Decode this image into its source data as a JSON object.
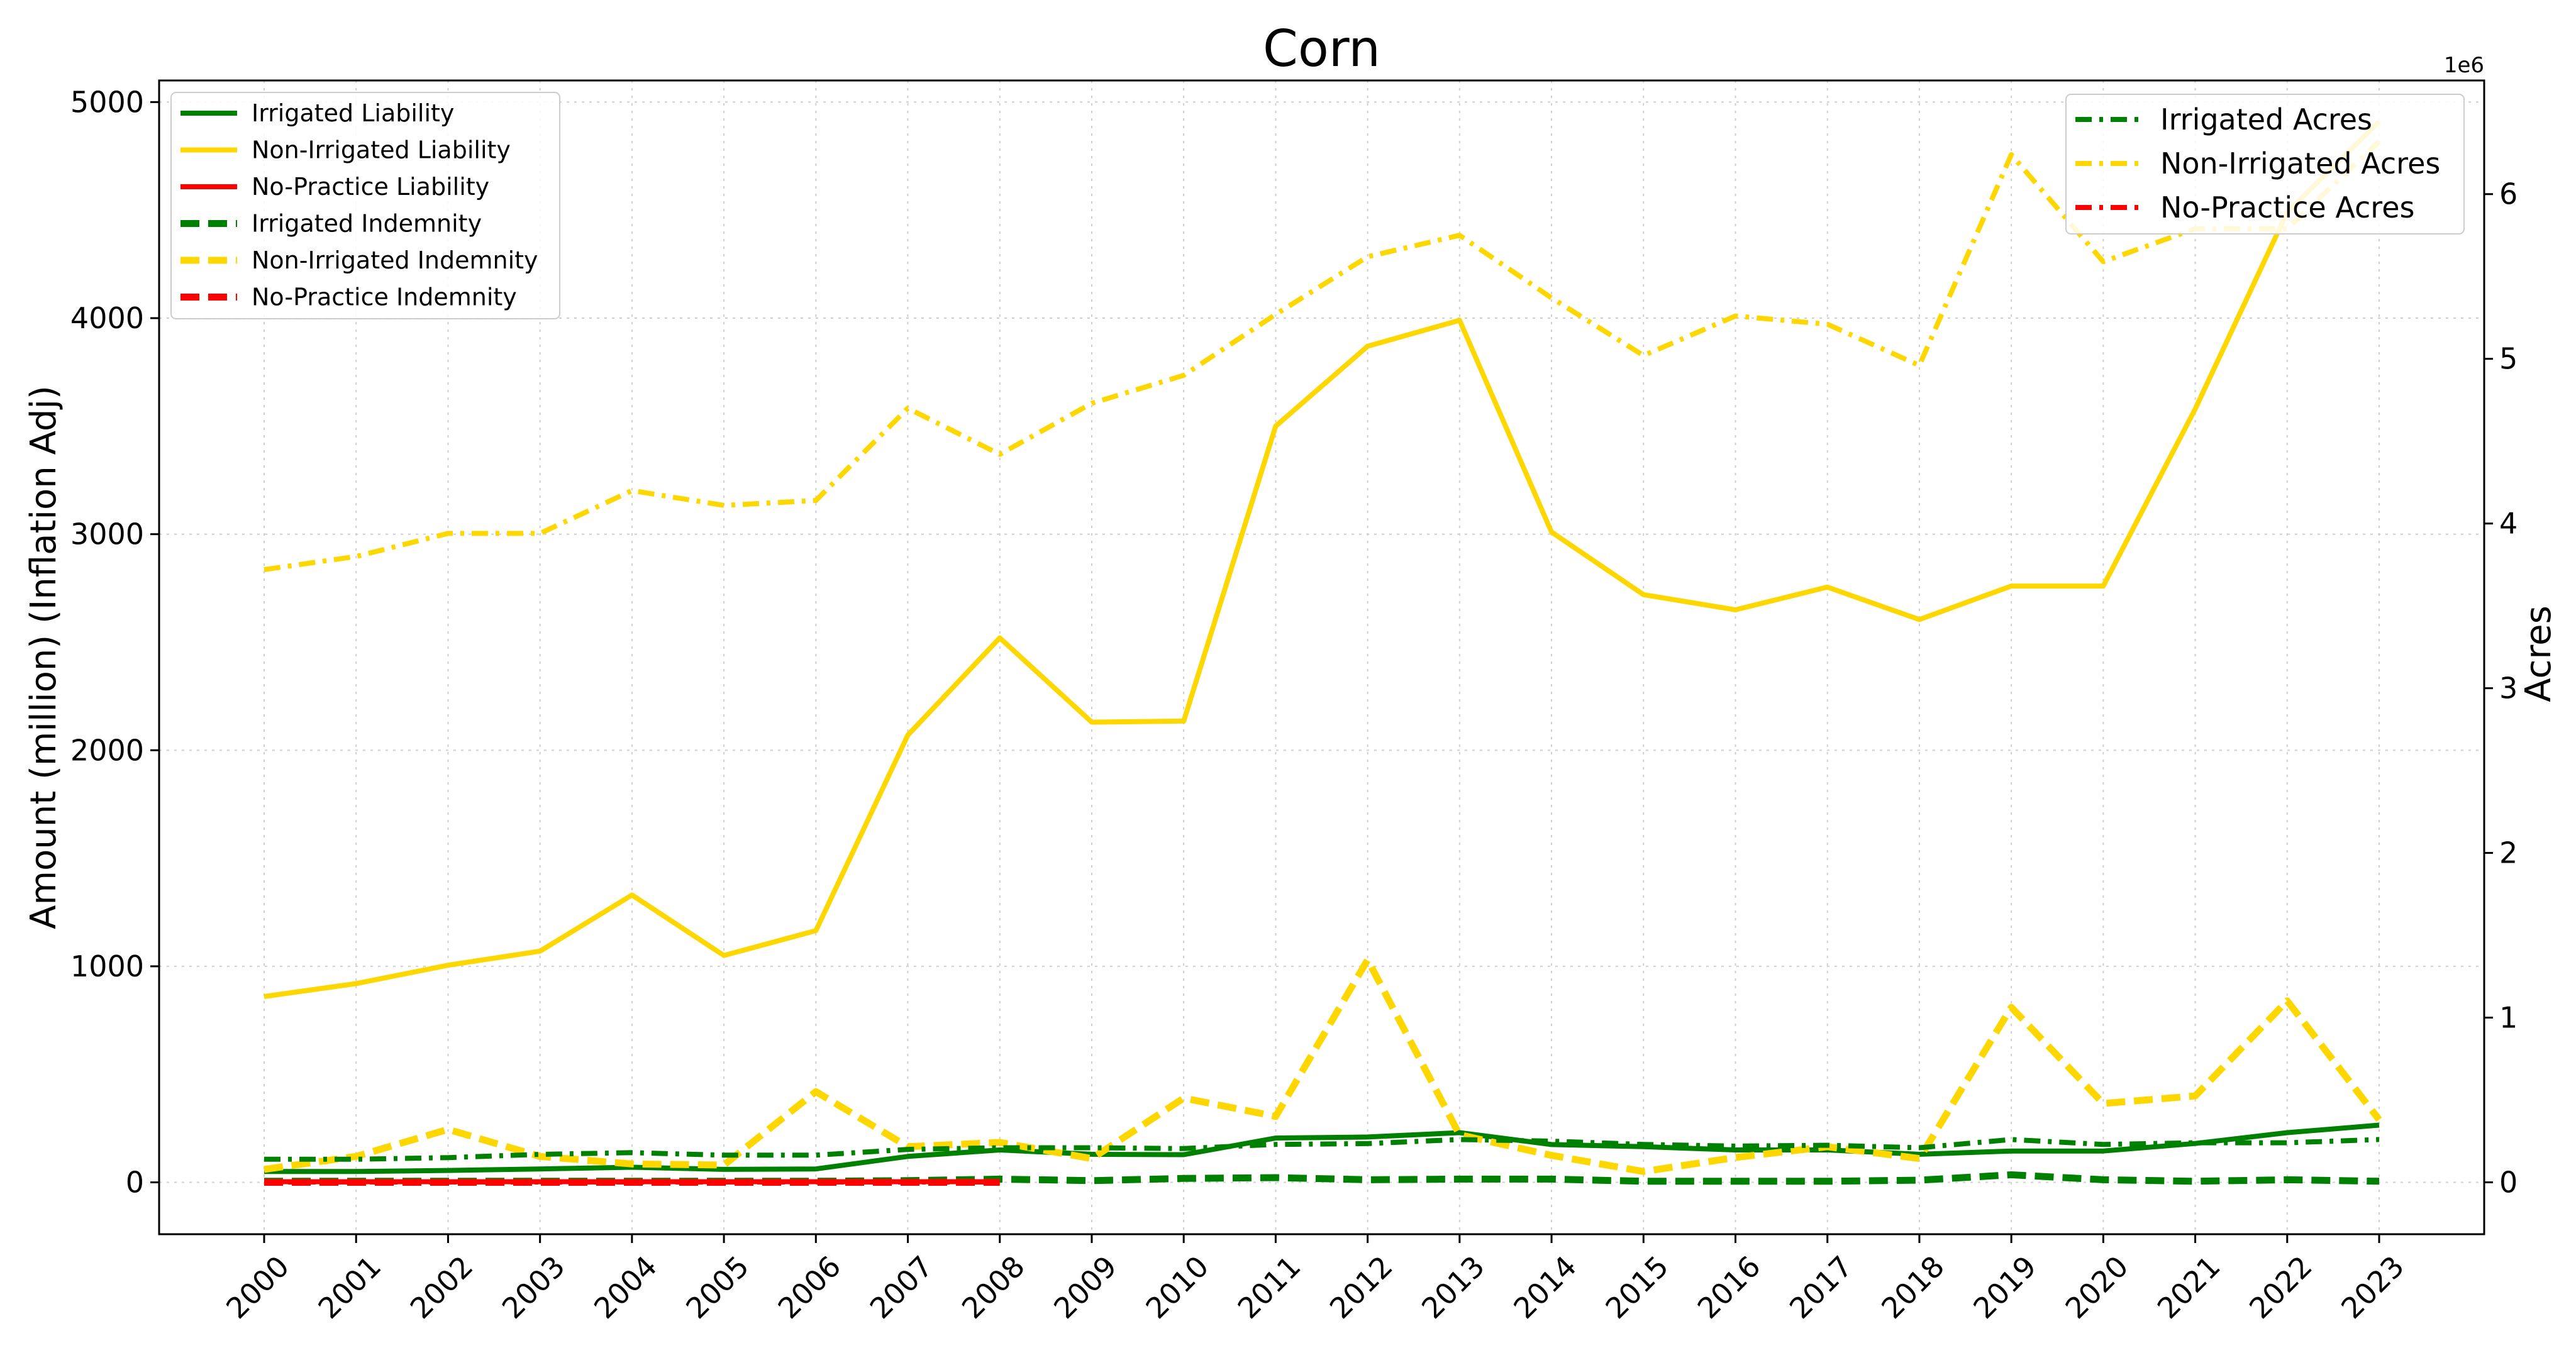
{
  "chart_data": {
    "type": "line",
    "title": "Corn",
    "xlabel": "",
    "ylabel": "Amount (million) (Inflation Adj)",
    "y2label": "Acres",
    "y2_offset_label": "1e6",
    "ylim": [
      -240,
      5100
    ],
    "y2lim": [
      -315000,
      6690000
    ],
    "yticks": [
      0,
      1000,
      2000,
      3000,
      4000,
      5000
    ],
    "y2ticks": [
      0,
      1000000,
      2000000,
      3000000,
      4000000,
      5000000,
      6000000
    ],
    "y2tick_labels": [
      "0",
      "1",
      "2",
      "3",
      "4",
      "5",
      "6"
    ],
    "grid": true,
    "x": [
      "2000",
      "2001",
      "2002",
      "2003",
      "2004",
      "2005",
      "2006",
      "2007",
      "2008",
      "2009",
      "2010",
      "2011",
      "2012",
      "2013",
      "2014",
      "2015",
      "2016",
      "2017",
      "2018",
      "2019",
      "2020",
      "2021",
      "2022",
      "2023"
    ],
    "series": [
      {
        "name": "Irrigated Liability",
        "axis": "left",
        "style": "solid",
        "color": "#008000",
        "values": [
          50,
          50,
          55,
          62,
          70,
          60,
          62,
          120,
          150,
          130,
          128,
          205,
          210,
          230,
          175,
          165,
          150,
          150,
          130,
          145,
          145,
          180,
          230,
          265
        ]
      },
      {
        "name": "Non-Irrigated Liability",
        "axis": "left",
        "style": "solid",
        "color": "#FFD700",
        "values": [
          860,
          920,
          1005,
          1070,
          1330,
          1050,
          1165,
          2070,
          2520,
          2130,
          2135,
          3500,
          3870,
          3990,
          3010,
          2720,
          2650,
          2755,
          2605,
          2760,
          2760,
          3580,
          4490,
          4910
        ]
      },
      {
        "name": "No-Practice Liability",
        "axis": "left",
        "style": "solid",
        "color": "#FF0000",
        "values": [
          3,
          3,
          3,
          3,
          3,
          3,
          3,
          3,
          3,
          null,
          null,
          null,
          null,
          null,
          null,
          null,
          null,
          null,
          null,
          null,
          null,
          null,
          null,
          null
        ]
      },
      {
        "name": "Irrigated Indemnity",
        "axis": "left",
        "style": "dashed",
        "color": "#008000",
        "values": [
          5,
          5,
          5,
          5,
          5,
          5,
          5,
          8,
          15,
          8,
          18,
          22,
          12,
          15,
          15,
          5,
          5,
          5,
          10,
          35,
          12,
          5,
          12,
          5
        ]
      },
      {
        "name": "Non-Irrigated Indemnity",
        "axis": "left",
        "style": "dashed",
        "color": "#FFD700",
        "values": [
          60,
          120,
          245,
          120,
          85,
          80,
          420,
          165,
          185,
          110,
          390,
          305,
          1030,
          220,
          125,
          50,
          115,
          165,
          110,
          810,
          365,
          400,
          840,
          290
        ]
      },
      {
        "name": "No-Practice Indemnity",
        "axis": "left",
        "style": "dashed",
        "color": "#FF0000",
        "values": [
          0,
          0,
          0,
          0,
          0,
          0,
          0,
          0,
          0,
          null,
          null,
          null,
          null,
          null,
          null,
          null,
          null,
          null,
          null,
          null,
          null,
          null,
          null,
          null
        ]
      },
      {
        "name": "Irrigated Acres",
        "axis": "right",
        "style": "dashdot",
        "color": "#008000",
        "values": [
          140000,
          140000,
          150000,
          170000,
          180000,
          165000,
          165000,
          200000,
          210000,
          210000,
          205000,
          230000,
          235000,
          260000,
          250000,
          230000,
          220000,
          225000,
          210000,
          260000,
          230000,
          240000,
          240000,
          260000
        ]
      },
      {
        "name": "Non-Irrigated Acres",
        "axis": "right",
        "style": "dashdot",
        "color": "#FFD700",
        "values": [
          3720000,
          3800000,
          3940000,
          3940000,
          4200000,
          4110000,
          4140000,
          4700000,
          4420000,
          4730000,
          4900000,
          5270000,
          5620000,
          5750000,
          5370000,
          5020000,
          5260000,
          5210000,
          4960000,
          6240000,
          5590000,
          5790000,
          5790000,
          6320000
        ]
      },
      {
        "name": "No-Practice Acres",
        "axis": "right",
        "style": "dashdot",
        "color": "#FF0000",
        "values": [
          2000,
          2000,
          2000,
          2000,
          2000,
          2000,
          2000,
          2000,
          2000,
          null,
          null,
          null,
          null,
          null,
          null,
          null,
          null,
          null,
          null,
          null,
          null,
          null,
          null,
          null
        ]
      }
    ],
    "legend_left_position": "upper-left",
    "legend_right_position": "upper-right"
  }
}
